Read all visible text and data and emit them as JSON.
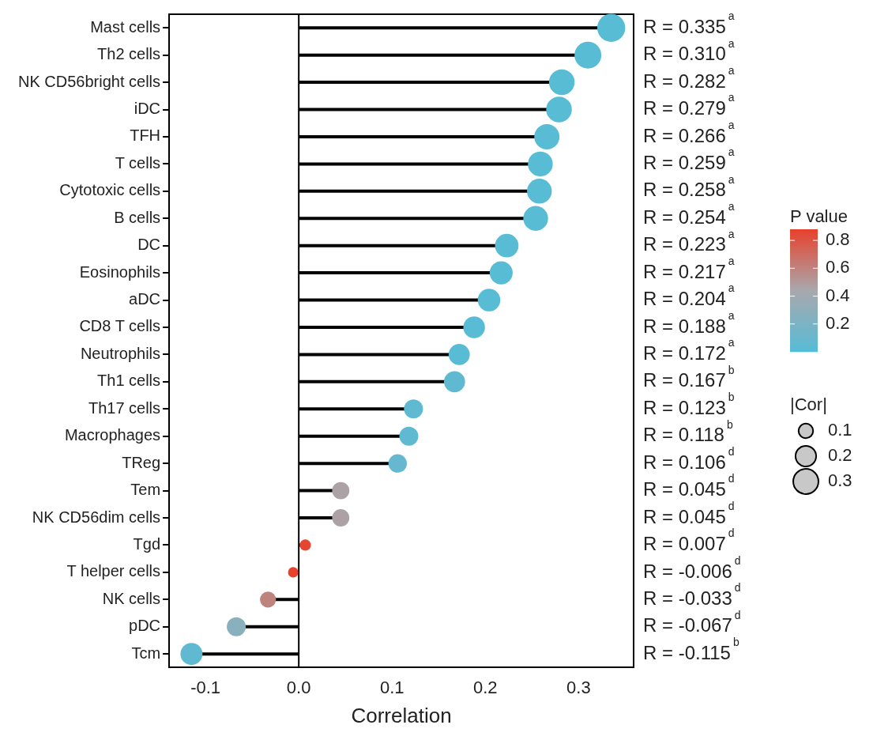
{
  "chart_data": {
    "type": "lollipop",
    "orientation": "horizontal",
    "xlabel": "Correlation",
    "clabel": "P value",
    "legend_title": "|Cor|",
    "marker": "circle",
    "grid": false,
    "categories": [
      "Mast cells",
      "Th2 cells",
      "NK CD56bright cells",
      "iDC",
      "TFH",
      "T cells",
      "Cytotoxic cells",
      "B cells",
      "DC",
      "Eosinophils",
      "aDC",
      "CD8 T cells",
      "Neutrophils",
      "Th1 cells",
      "Th17 cells",
      "Macrophages",
      "TReg",
      "Tem",
      "NK CD56dim cells",
      "Tgd",
      "T helper cells",
      "NK cells",
      "pDC",
      "Tcm"
    ],
    "values": [
      0.335,
      0.31,
      0.282,
      0.279,
      0.266,
      0.259,
      0.258,
      0.254,
      0.223,
      0.217,
      0.204,
      0.188,
      0.172,
      0.167,
      0.123,
      0.118,
      0.106,
      0.045,
      0.045,
      0.007,
      -0.006,
      -0.033,
      -0.067,
      -0.115
    ],
    "sizes": [
      0.37,
      0.34,
      0.31,
      0.31,
      0.3,
      0.29,
      0.29,
      0.29,
      0.26,
      0.25,
      0.24,
      0.22,
      0.21,
      0.21,
      0.17,
      0.17,
      0.16,
      0.14,
      0.14,
      0.06,
      0.05,
      0.12,
      0.17,
      0.23
    ],
    "size_legend": [
      0.1,
      0.2,
      0.3
    ],
    "cvalues": [
      0.01,
      0.01,
      0.01,
      0.01,
      0.01,
      0.01,
      0.01,
      0.01,
      0.01,
      0.01,
      0.01,
      0.01,
      0.01,
      0.05,
      0.05,
      0.05,
      0.08,
      0.47,
      0.47,
      0.86,
      0.88,
      0.6,
      0.27,
      0.05
    ],
    "clim": [
      0,
      0.88
    ],
    "cticks": [
      0.2,
      0.4,
      0.6,
      0.8
    ],
    "value_labels": [
      "R = 0.335$^{a}$",
      "R = 0.310$^{a}$",
      "R = 0.282$^{a}$",
      "R = 0.279$^{a}$",
      "R = 0.266$^{a}$",
      "R = 0.259$^{a}$",
      "R = 0.258$^{a}$",
      "R = 0.254$^{a}$",
      "R = 0.223$^{a}$",
      "R = 0.217$^{a}$",
      "R = 0.204$^{a}$",
      "R = 0.188$^{a}$",
      "R = 0.172$^{a}$",
      "R = 0.167$^{b}$",
      "R = 0.123$^{b}$",
      "R = 0.118$^{b}$",
      "R = 0.106$^{d}$",
      "R = 0.045$^{d}$",
      "R = 0.045$^{d}$",
      "R = 0.007$^{d}$",
      "R = -0.006$^{d}$",
      "R = -0.033$^{d}$",
      "R = -0.067$^{d}$",
      "R = -0.115$^{b}$"
    ],
    "xlim": [
      -0.139,
      0.359
    ],
    "xticks": [
      -0.1,
      {
        "value": 0,
        "label": "0.0"
      },
      0.1,
      0.2,
      0.3
    ],
    "ref_lines": [
      {
        "axis": "x",
        "value": 0
      }
    ]
  }
}
